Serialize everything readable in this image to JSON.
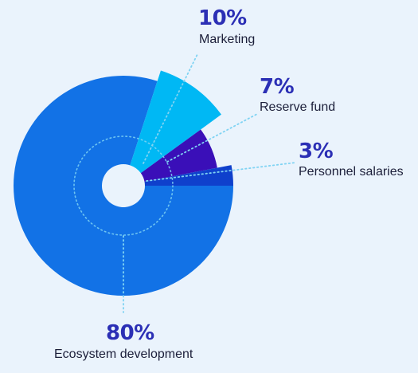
{
  "chart_data": {
    "type": "pie",
    "style": "donut with radially offset slices",
    "slices": [
      {
        "label": "Ecosystem development",
        "value": 80,
        "display": "80%",
        "color": "#1272e6"
      },
      {
        "label": "Marketing",
        "value": 10,
        "display": "10%",
        "color": "#00b8f4"
      },
      {
        "label": "Reserve fund",
        "value": 7,
        "display": "7%",
        "color": "#3a0fb8"
      },
      {
        "label": "Personnel salaries",
        "value": 3,
        "display": "3%",
        "color": "#0f40cc"
      }
    ],
    "leader_line_color": "#7fd3f3",
    "percent_color": "#2b2fb5",
    "label_color": "#1c1f3a",
    "background": "#eaf3fc"
  }
}
